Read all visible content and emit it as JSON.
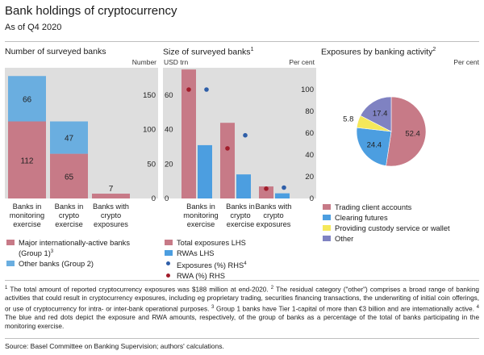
{
  "title": "Bank holdings of cryptocurrency",
  "subtitle": "As of Q4 2020",
  "colors": {
    "group1": "#c77a87",
    "group2": "#6aaee0",
    "total": "#c77a87",
    "rwa": "#4c9ee0",
    "dot_blue": "#2e5ea8",
    "dot_red": "#a11c2a",
    "panel_bg": "#dedede",
    "pie_trading": "#c77a87",
    "pie_clearing": "#4c9ee0",
    "pie_custody": "#f5e85a",
    "pie_other": "#7f82c2"
  },
  "chart_data": [
    {
      "type": "bar",
      "stacked": true,
      "title": "Number of surveyed banks",
      "unit_label": "Number",
      "categories": [
        "Banks in monitoring exercise",
        "Banks in crypto exercise",
        "Banks with crypto exposures"
      ],
      "category_lines": [
        [
          "Banks in",
          "monitoring",
          "exercise"
        ],
        [
          "Banks in",
          "crypto",
          "exercise"
        ],
        [
          "Banks with",
          "crypto",
          "exposures"
        ]
      ],
      "series": [
        {
          "name": "Major internationally-active banks (Group 1)",
          "values": [
            112,
            65,
            7
          ],
          "color": "#c77a87"
        },
        {
          "name": "Other banks (Group 2)",
          "values": [
            66,
            47,
            0
          ],
          "color": "#6aaee0"
        }
      ],
      "data_labels": [
        [
          "112",
          "66"
        ],
        [
          "65",
          "47"
        ],
        [
          "",
          ""
        ]
      ],
      "total_labels": [
        "",
        "",
        "7"
      ],
      "y_ticks": [
        0,
        50,
        100,
        150
      ],
      "ylim": [
        0,
        190
      ],
      "grid": false
    },
    {
      "type": "bar",
      "title": "Size of surveyed banks",
      "title_note": "1",
      "left_unit": "USD trn",
      "right_unit": "Per cent",
      "categories": [
        "Banks in monitoring exercise",
        "Banks in crypto exercise",
        "Banks with crypto exposures"
      ],
      "category_lines": [
        [
          "Banks in",
          "monitoring",
          "exercise"
        ],
        [
          "Banks in",
          "crypto",
          "exercise"
        ],
        [
          "Banks with",
          "crypto",
          "exposures"
        ]
      ],
      "series": [
        {
          "name": "Total exposures LHS",
          "axis": "left",
          "values": [
            75,
            44,
            7
          ]
        },
        {
          "name": "RWAs LHS",
          "axis": "left",
          "values": [
            31,
            14,
            3
          ]
        },
        {
          "name": "Exposures (%) RHS",
          "axis": "right",
          "values": [
            100,
            58,
            10
          ]
        },
        {
          "name": "RWA (%) RHS",
          "axis": "right",
          "values": [
            100,
            46,
            9
          ]
        }
      ],
      "left_ticks": [
        0,
        20,
        40,
        60
      ],
      "left_lim": [
        0,
        76
      ],
      "right_ticks": [
        0,
        20,
        40,
        60,
        80,
        100
      ],
      "right_lim": [
        0,
        120
      ],
      "grid": false
    },
    {
      "type": "pie",
      "title": "Exposures by banking activity",
      "title_note": "2",
      "unit_label": "Per cent",
      "slices": [
        {
          "label": "Trading client accounts",
          "value": 52.4
        },
        {
          "label": "Clearing futures",
          "value": 24.4
        },
        {
          "label": "Providing custody service or wallet",
          "value": 5.8
        },
        {
          "label": "Other",
          "value": 17.4
        }
      ]
    }
  ],
  "legend_left": {
    "group1_line1": "Major internationally-active banks",
    "group1_line2": "(Group 1)",
    "group1_note": "3",
    "group2": "Other banks (Group 2)"
  },
  "legend_middle": {
    "total": "Total exposures LHS",
    "rwa": "RWAs LHS",
    "exp_pct": "Exposures (%) RHS",
    "exp_pct_note": "4",
    "rwa_pct": "RWA (%) RHS"
  },
  "legend_right": {
    "trading": "Trading client accounts",
    "clearing": "Clearing futures",
    "custody": "Providing custody service or wallet",
    "other": "Other"
  },
  "notes": {
    "n1_mark": "1",
    "n1": " The total amount of reported cryptocurrency exposures was $188 million at end-2020. ",
    "n2_mark": "2",
    "n2": " The residual category (\"other\") comprises a broad range of banking activities that could result in cryptocurrency exposures, including eg proprietary trading, securities financing transactions, the underwriting of initial coin offerings, or use of cryptocurrency for intra- or inter-bank operational purposes. ",
    "n3_mark": "3",
    "n3": " Group 1 banks have Tier 1-capital of more than €3 billion and are internationally active. ",
    "n4_mark": "4",
    "n4": " The blue and red dots depict the exposure and RWA amounts, respectively, of the group of banks as a percentage of the total of banks participating in the monitoring exercise."
  },
  "source": "Source: Basel Committee on Banking Supervision; authors' calculations."
}
